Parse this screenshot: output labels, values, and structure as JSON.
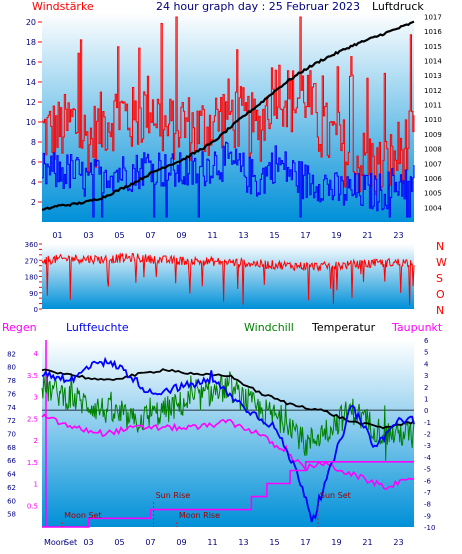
{
  "header": {
    "left_label": "Windstärke",
    "title": "24 hour graph day : 25 Februar 2023",
    "right_label": "Luftdruck"
  },
  "colors": {
    "wind_speed": "#ff0000",
    "wind_avg": "#0000ff",
    "pressure": "#000000",
    "direction": "#ff0000",
    "humidity": "#0000ff",
    "windchill": "#008000",
    "temperature": "#000000",
    "dewpoint": "#ff00ff",
    "rain": "#ff00ff",
    "sky_top": "#ffffff",
    "sky_bottom": "#0090d8",
    "compass": "#ff0000",
    "time_axis": "#000080"
  },
  "time_labels": [
    "01",
    "03",
    "05",
    "07",
    "09",
    "11",
    "13",
    "15",
    "17",
    "19",
    "21",
    "23"
  ],
  "bottom_axis": {
    "labels": [
      "Moon",
      "01",
      "03",
      "05",
      "07",
      "09",
      "11",
      "13",
      "15",
      "17",
      "19",
      "21",
      "23"
    ],
    "moon_overlap_label": "Set"
  },
  "panel3_labels": {
    "rain": "Regen",
    "humidity": "Luftfeuchte",
    "windchill": "Windchill",
    "temperature": "Temperatur",
    "dewpoint": "Taupunkt"
  },
  "events": [
    {
      "label": "Moon Set",
      "hour": 1.3
    },
    {
      "label": "Sun Rise",
      "hour": 7.2
    },
    {
      "label": "Moon Rise",
      "hour": 8.7
    },
    {
      "label": "Sun Set",
      "hour": 17.8
    }
  ],
  "compass": [
    "N",
    "W",
    "S",
    "O",
    "N"
  ],
  "chart_data": [
    {
      "type": "line",
      "title": "24 hour graph day : 25 Februar 2023",
      "left_axis": {
        "label": "Windstärke",
        "range": [
          0,
          21
        ],
        "ticks": [
          2,
          4,
          6,
          8,
          10,
          12,
          14,
          16,
          18,
          20
        ]
      },
      "right_axis": {
        "label": "Luftdruck",
        "range": [
          1003,
          1017.3
        ],
        "ticks": [
          1004,
          1005,
          1006,
          1007,
          1008,
          1009,
          1010,
          1011,
          1012,
          1013,
          1014,
          1015,
          1016,
          1017
        ]
      },
      "x_range_hours": [
        0,
        24
      ],
      "series": [
        {
          "name": "Luftdruck",
          "axis": "right",
          "x": [
            0,
            1,
            2,
            3,
            4,
            5,
            6,
            7,
            8,
            9,
            10,
            11,
            12,
            13,
            14,
            15,
            16,
            17,
            18,
            19,
            20,
            21,
            22,
            23,
            24
          ],
          "y": [
            1003.8,
            1004.1,
            1004.2,
            1004.4,
            1004.7,
            1005.2,
            1005.7,
            1006.3,
            1006.8,
            1007.2,
            1007.8,
            1008.4,
            1009.3,
            1010.2,
            1011.0,
            1011.9,
            1012.7,
            1013.4,
            1014.0,
            1014.5,
            1015.0,
            1015.4,
            1015.8,
            1016.2,
            1016.6
          ]
        },
        {
          "axis": "left",
          "note": "wind gust",
          "x": [
            0,
            1,
            2,
            3,
            4,
            5,
            6,
            7,
            8,
            9,
            10,
            11,
            12,
            13,
            14,
            15,
            16,
            17,
            18,
            19,
            20,
            21,
            22,
            23,
            24
          ],
          "y": [
            9,
            9,
            10,
            8,
            10,
            11,
            10,
            12,
            9,
            10,
            9,
            10,
            11,
            10,
            9,
            14,
            12,
            13,
            9,
            8,
            6,
            6,
            5,
            7,
            8
          ]
        },
        {
          "axis": "left",
          "note": "wind average",
          "x": [
            0,
            1,
            2,
            3,
            4,
            5,
            6,
            7,
            8,
            9,
            10,
            11,
            12,
            13,
            14,
            15,
            16,
            17,
            18,
            19,
            20,
            21,
            22,
            23,
            24
          ],
          "y": [
            5,
            5,
            5,
            4,
            5,
            5,
            5,
            6,
            5,
            5,
            5,
            6,
            6,
            5,
            4,
            6,
            5,
            4,
            4,
            3,
            3,
            3,
            3,
            4,
            4
          ]
        }
      ]
    },
    {
      "type": "line",
      "ylim": [
        0,
        360
      ],
      "y_ticks": [
        0,
        30,
        60,
        90,
        120,
        150,
        180,
        210,
        240,
        270,
        300,
        330,
        360
      ],
      "right_labels": [
        "N",
        "W",
        "S",
        "O",
        "N"
      ],
      "x_range_hours": [
        0,
        24
      ],
      "series": [
        {
          "x": [
            0,
            2,
            4,
            6,
            8,
            10,
            12,
            14,
            16,
            18,
            20,
            22,
            24
          ],
          "y": [
            270,
            280,
            275,
            285,
            270,
            265,
            260,
            250,
            240,
            235,
            245,
            255,
            260
          ]
        }
      ]
    },
    {
      "type": "line",
      "left_axis_rain": {
        "range": [
          0,
          4.3
        ],
        "ticks": [
          0.5,
          1,
          1.5,
          2,
          2.5,
          3,
          3.5,
          4
        ]
      },
      "left_axis_humidity": {
        "range": [
          56,
          84
        ],
        "ticks": [
          58,
          60,
          62,
          64,
          66,
          68,
          70,
          72,
          74,
          76,
          78,
          80,
          82
        ]
      },
      "right_axis_temperature": {
        "range": [
          -10,
          6
        ],
        "ticks": [
          -10,
          -9,
          -8,
          -7,
          -6,
          -5,
          -4,
          -3,
          -2,
          -1,
          0,
          1,
          2,
          3,
          4,
          5,
          6
        ]
      },
      "x_range_hours": [
        0,
        24
      ],
      "series": [
        {
          "name": "Luftfeuchte",
          "axis": "humidity",
          "x": [
            0,
            2,
            3.5,
            5,
            7,
            9,
            11,
            13,
            15,
            16.5,
            17.5,
            18.5,
            20,
            21.5,
            23,
            24
          ],
          "y": [
            79,
            78,
            81,
            80,
            76,
            77,
            78,
            74,
            71,
            64,
            57,
            64,
            74,
            68,
            72,
            72
          ]
        },
        {
          "name": "Windchill",
          "axis": "temperature",
          "x": [
            0,
            2,
            4,
            6,
            8,
            10,
            12,
            14,
            16,
            17,
            18,
            20,
            22,
            24
          ],
          "y": [
            2,
            1,
            0,
            -1,
            0,
            1,
            2,
            0,
            -1,
            -3,
            -2,
            0,
            -2,
            -2
          ]
        },
        {
          "name": "Temperatur",
          "axis": "temperature",
          "x": [
            0,
            2,
            4,
            6,
            8,
            10,
            12,
            14,
            16,
            18,
            20,
            22,
            24
          ],
          "y": [
            3.5,
            3,
            2.5,
            3,
            3.5,
            3,
            3,
            1.5,
            0.5,
            0,
            -1,
            -1.5,
            -1
          ]
        },
        {
          "name": "Taupunkt",
          "axis": "temperature",
          "x": [
            0,
            2,
            4,
            6,
            8,
            10,
            12,
            14,
            16,
            17,
            18,
            20,
            22,
            24
          ],
          "y": [
            -0.5,
            -1.5,
            -2,
            -1.5,
            -1.5,
            -1.5,
            -1,
            -2,
            -4,
            -5,
            -4.5,
            -5.5,
            -6.5,
            -6
          ]
        },
        {
          "name": "Regen",
          "axis": "rain",
          "x": [
            0,
            3,
            3.01,
            7,
            7.01,
            13.5,
            13.51,
            14.5,
            14.51,
            16,
            16.01,
            17,
            17.01,
            18,
            18.01,
            24
          ],
          "y": [
            0,
            0,
            0.2,
            0.2,
            0.4,
            0.4,
            0.7,
            0.7,
            1.0,
            1.0,
            1.3,
            1.3,
            1.5,
            1.5,
            1.5,
            1.5
          ]
        }
      ]
    }
  ]
}
